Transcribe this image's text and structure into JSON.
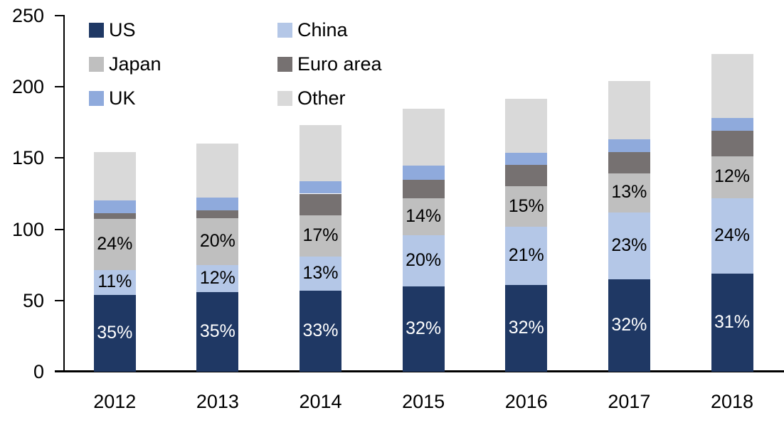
{
  "chart_data": {
    "type": "bar",
    "stacked": true,
    "title": "",
    "xlabel": "",
    "ylabel": "",
    "ylim": [
      0,
      250
    ],
    "yticks": [
      "0",
      "50",
      "100",
      "150",
      "200",
      "250"
    ],
    "grid": false,
    "legend_position": "top-left-inside",
    "categories": [
      "2012",
      "2013",
      "2014",
      "2015",
      "2016",
      "2017",
      "2018"
    ],
    "series": [
      {
        "name": "US",
        "color": "#1F3864",
        "values": [
          54,
          56,
          57,
          60,
          61,
          65,
          69
        ],
        "labels": [
          "35%",
          "35%",
          "33%",
          "32%",
          "32%",
          "32%",
          "31%"
        ],
        "label_color": "#FFFFFF"
      },
      {
        "name": "China",
        "color": "#B4C7E7",
        "values": [
          17.5,
          19,
          24,
          36,
          41,
          47,
          53
        ],
        "labels": [
          "11%",
          "12%",
          "13%",
          "20%",
          "21%",
          "23%",
          "24%"
        ],
        "label_color": "#000000"
      },
      {
        "name": "Japan",
        "color": "#BFBFBF",
        "values": [
          36,
          33,
          29,
          26,
          28,
          27,
          29
        ],
        "labels": [
          "24%",
          "20%",
          "17%",
          "14%",
          "15%",
          "13%",
          "12%"
        ],
        "label_color": "#000000"
      },
      {
        "name": "Euro area",
        "color": "#767171",
        "values": [
          4,
          5.5,
          15,
          12.5,
          15,
          15,
          18
        ],
        "labels": null,
        "label_color": null
      },
      {
        "name": "UK",
        "color": "#8FAADC",
        "values": [
          9,
          9,
          8.5,
          10,
          8.5,
          9,
          9
        ],
        "labels": null,
        "label_color": null
      },
      {
        "name": "Other",
        "color": "#D9D9D9",
        "values": [
          33.5,
          37.5,
          39.5,
          40,
          38,
          41,
          45
        ],
        "labels": null,
        "label_color": null
      }
    ],
    "totals_approx": [
      154,
      160,
      173,
      184.5,
      191.5,
      204,
      223
    ],
    "axis_color": "#000000"
  }
}
